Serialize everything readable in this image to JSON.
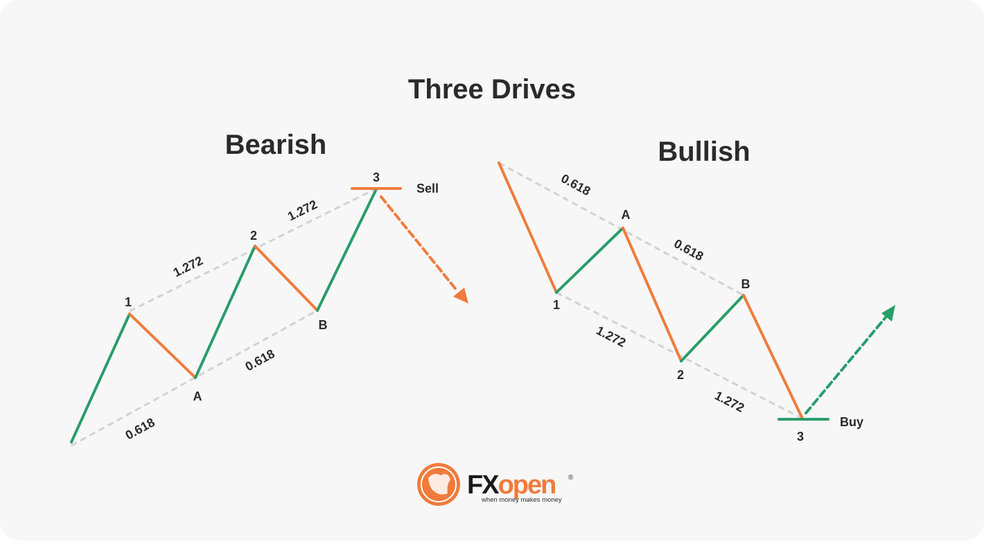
{
  "title": "Three Drives",
  "bearish": {
    "title": "Bearish",
    "points": [
      "1",
      "A",
      "2",
      "B",
      "3"
    ],
    "ratios": [
      "0.618",
      "1.272",
      "0.618",
      "1.272"
    ],
    "action": "Sell"
  },
  "bullish": {
    "title": "Bullish",
    "points": [
      "1",
      "A",
      "2",
      "B",
      "3"
    ],
    "ratios": [
      "0.618",
      "0.618",
      "1.272",
      "1.272"
    ],
    "action": "Buy"
  },
  "logo": {
    "brand_a": "FX",
    "brand_b": "open",
    "mark": "®",
    "tagline": "when money makes money"
  }
}
